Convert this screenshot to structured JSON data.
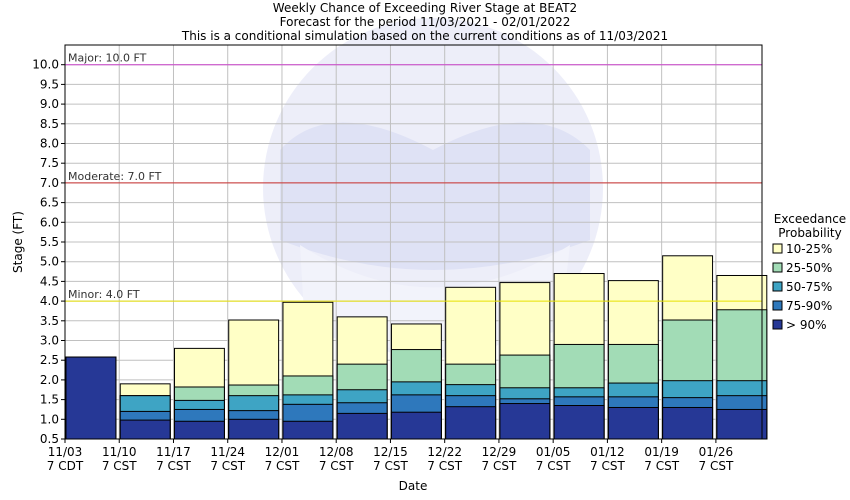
{
  "chart_data": {
    "type": "bar",
    "title_lines": [
      "Weekly Chance of Exceeding River Stage at BEAT2",
      "Forecast for the period 11/03/2021 - 02/01/2022",
      "This is a conditional simulation based on the current conditions as of 11/03/2021"
    ],
    "xlabel": "Date",
    "ylabel": "Stage (FT)",
    "ylim": [
      0.5,
      10.5
    ],
    "yticks": [
      "0.5",
      "1.0",
      "1.5",
      "2.0",
      "2.5",
      "3.0",
      "3.5",
      "4.0",
      "4.5",
      "5.0",
      "5.5",
      "6.0",
      "6.5",
      "7.0",
      "7.5",
      "8.0",
      "8.5",
      "9.0",
      "9.5",
      "10.0"
    ],
    "categories": [
      {
        "date": "11/03",
        "time": "7 CDT"
      },
      {
        "date": "11/10",
        "time": "7 CST"
      },
      {
        "date": "11/17",
        "time": "7 CST"
      },
      {
        "date": "11/24",
        "time": "7 CST"
      },
      {
        "date": "12/01",
        "time": "7 CST"
      },
      {
        "date": "12/08",
        "time": "7 CST"
      },
      {
        "date": "12/15",
        "time": "7 CST"
      },
      {
        "date": "12/22",
        "time": "7 CST"
      },
      {
        "date": "12/29",
        "time": "7 CST"
      },
      {
        "date": "01/05",
        "time": "7 CST"
      },
      {
        "date": "01/12",
        "time": "7 CST"
      },
      {
        "date": "01/19",
        "time": "7 CST"
      },
      {
        "date": "01/26",
        "time": "7 CST"
      }
    ],
    "legend": {
      "title_lines": [
        "Exceedance",
        "Probability"
      ],
      "placement": "right"
    },
    "series": [
      {
        "name": "> 90%",
        "color": "#263896",
        "values": [
          2.58,
          0.98,
          0.95,
          1.0,
          0.95,
          1.15,
          1.18,
          1.32,
          1.4,
          1.35,
          1.3,
          1.3,
          1.25
        ]
      },
      {
        "name": "75-90%",
        "color": "#2e78bc",
        "values": [
          2.58,
          1.2,
          1.25,
          1.22,
          1.38,
          1.42,
          1.62,
          1.6,
          1.52,
          1.57,
          1.57,
          1.55,
          1.6
        ]
      },
      {
        "name": "50-75%",
        "color": "#3ea4c4",
        "values": [
          2.58,
          1.6,
          1.48,
          1.6,
          1.62,
          1.75,
          1.95,
          1.88,
          1.8,
          1.8,
          1.92,
          1.98,
          1.98
        ]
      },
      {
        "name": "25-50%",
        "color": "#a2dcb6",
        "values": [
          2.58,
          1.6,
          1.82,
          1.87,
          2.1,
          2.4,
          2.77,
          2.4,
          2.63,
          2.9,
          2.9,
          3.52,
          3.78
        ]
      },
      {
        "name": "10-25%",
        "color": "#ffffc6",
        "values": [
          2.58,
          1.9,
          2.8,
          3.52,
          3.97,
          3.6,
          3.42,
          4.35,
          4.47,
          4.7,
          4.52,
          5.15,
          4.65
        ]
      }
    ],
    "thresholds": [
      {
        "label": "Major: 10.0 FT",
        "value": 10.0,
        "color": "#cc44cc"
      },
      {
        "label": "Moderate: 7.0 FT",
        "value": 7.0,
        "color": "#cc3333"
      },
      {
        "label": "Minor: 4.0 FT",
        "value": 4.0,
        "color": "#e8e000"
      }
    ],
    "grid": true,
    "watermark": "NOAA"
  }
}
